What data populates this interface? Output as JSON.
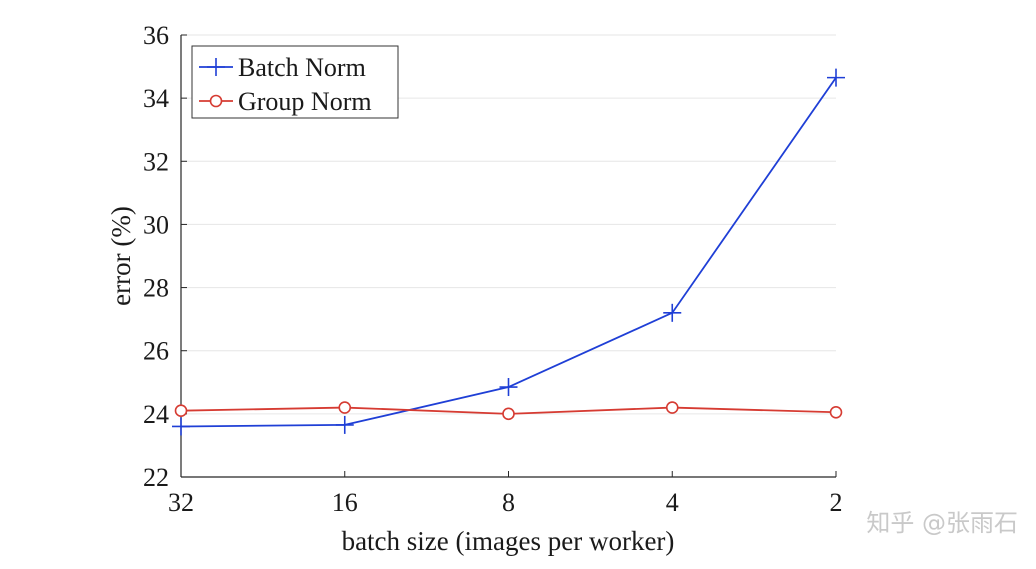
{
  "chart_data": {
    "type": "line",
    "xlabel": "batch size (images per worker)",
    "ylabel": "error (%)",
    "categories": [
      "32",
      "16",
      "8",
      "4",
      "2"
    ],
    "ylim": [
      22,
      36
    ],
    "yticks": [
      22,
      24,
      26,
      28,
      30,
      32,
      34,
      36
    ],
    "grid": "horizontal",
    "legend_position": "top-left",
    "series": [
      {
        "name": "Batch Norm",
        "marker": "plus",
        "color": "#1f3fd6",
        "values": [
          23.6,
          23.65,
          24.85,
          27.2,
          34.65
        ]
      },
      {
        "name": "Group Norm",
        "marker": "circle",
        "color": "#d63b32",
        "values": [
          24.1,
          24.2,
          24.0,
          24.2,
          24.05
        ]
      }
    ]
  },
  "watermark": "知乎 @张雨石"
}
